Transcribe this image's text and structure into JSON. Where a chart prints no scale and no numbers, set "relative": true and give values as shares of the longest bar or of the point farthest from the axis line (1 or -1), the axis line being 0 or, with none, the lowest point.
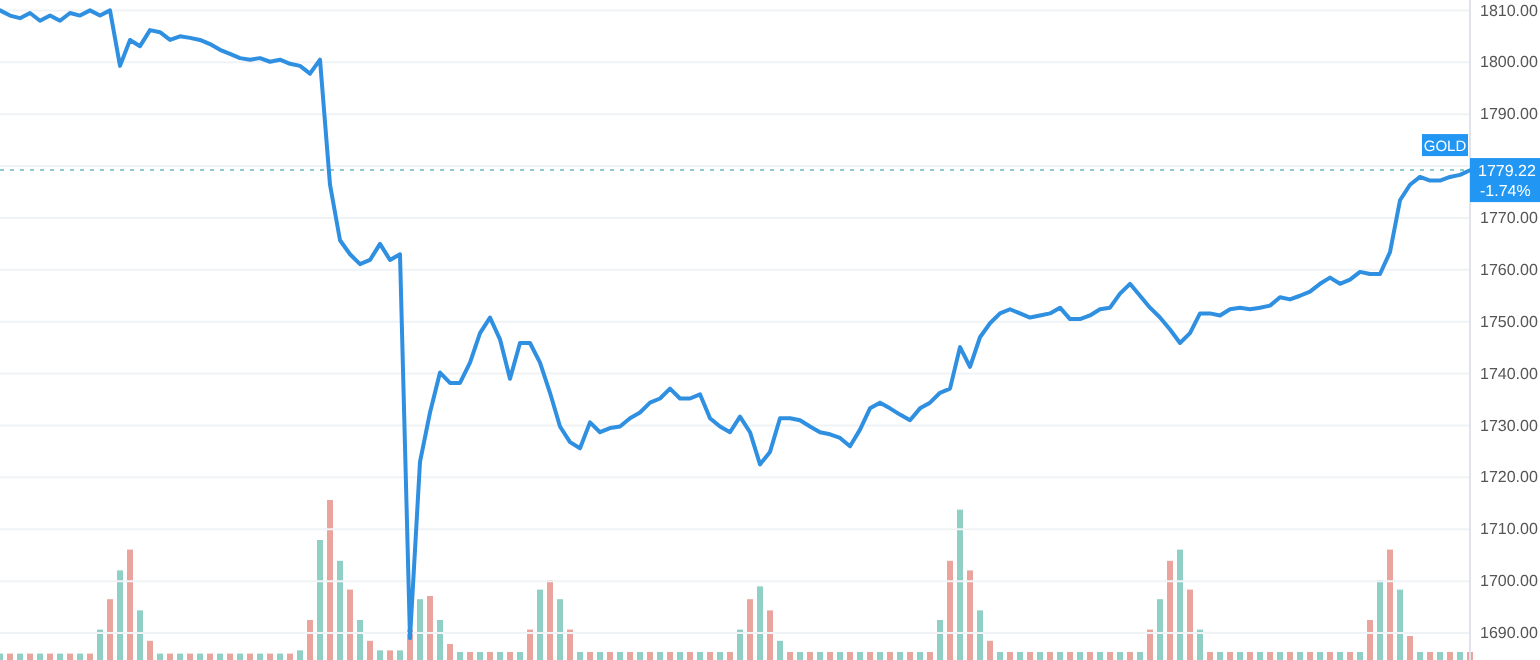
{
  "chart_data": [
    {
      "type": "line",
      "categories": [
        null,
        null,
        null,
        null,
        null,
        null,
        null,
        null,
        null,
        null,
        null,
        null,
        null,
        null,
        null,
        null,
        null,
        null,
        null,
        null,
        null,
        null,
        null,
        null,
        null,
        null,
        null,
        null,
        null,
        null,
        null,
        null,
        null,
        null,
        null,
        null,
        null,
        null,
        null,
        null,
        null,
        null,
        null,
        null,
        null,
        null,
        null,
        null,
        null,
        null,
        null,
        null,
        null,
        null,
        null,
        null,
        null,
        null,
        null,
        null,
        null,
        null,
        null,
        null,
        null,
        null,
        null,
        null,
        null,
        null,
        null,
        null,
        null,
        null,
        null,
        null,
        null,
        null,
        null,
        null,
        null,
        null,
        null,
        null,
        null,
        null,
        null,
        null,
        null,
        null,
        null,
        null,
        null,
        null,
        null,
        null,
        null,
        null,
        null,
        null,
        null,
        null,
        null,
        null,
        null,
        null,
        null,
        null,
        null,
        null,
        null,
        null,
        null,
        null,
        null,
        null,
        null,
        null,
        null,
        null,
        null,
        null,
        null,
        null,
        null,
        null,
        null,
        null,
        null,
        null,
        null,
        null,
        null,
        null,
        null,
        null,
        null,
        null,
        null,
        null,
        null,
        null,
        null,
        null,
        null,
        null,
        null,
        null
      ],
      "series": [
        {
          "color": "#2f8fe0",
          "values": [
            1810,
            1809,
            1808.5,
            1809.5,
            1808,
            1809,
            1808,
            1809.5,
            1809,
            1810,
            1809,
            1810,
            1799.3,
            1804.3,
            1803.1,
            1806.2,
            1805.8,
            1804.3,
            1805,
            1804.7,
            1804.3,
            1803.5,
            1802.4,
            1801.6,
            1800.8,
            1800.5,
            1800.8,
            1800.1,
            1800.5,
            1799.7,
            1799.3,
            1797.8,
            1800.5,
            1776.4,
            1765.7,
            1763,
            1761.1,
            1761.9,
            1765,
            1761.9,
            1763,
            1689,
            1723,
            1732.5,
            1740.2,
            1738.2,
            1738.2,
            1742.1,
            1747.8,
            1750.8,
            1746.6,
            1739,
            1745.9,
            1745.9,
            1742.1,
            1736.3,
            1729.8,
            1726.8,
            1725.6,
            1730.6,
            1728.7,
            1729.5,
            1729.8,
            1731.4,
            1732.5,
            1734.4,
            1735.2,
            1737.1,
            1735.2,
            1735.2,
            1736,
            1731.4,
            1729.8,
            1728.7,
            1731.7,
            1728.7,
            1722.5,
            1724.9,
            1731.4,
            1731.4,
            1731,
            1729.8,
            1728.7,
            1728.3,
            1727.6,
            1726,
            1729.2,
            1733.3,
            1734.4,
            1733.3,
            1732.1,
            1731,
            1733.3,
            1734.4,
            1736.3,
            1737.1,
            1745.1,
            1741.3,
            1747,
            1749.7,
            1751.6,
            1752.4,
            1751.6,
            1750.8,
            1751.2,
            1751.6,
            1752.7,
            1750.5,
            1750.5,
            1751.2,
            1752.4,
            1752.7,
            1755.4,
            1757.3,
            1755,
            1752.7,
            1750.8,
            1748.5,
            1745.9,
            1747.8,
            1751.6,
            1751.6,
            1751.2,
            1752.4,
            1752.7,
            1752.4,
            1752.7,
            1753.1,
            1754.7,
            1754.3,
            1755,
            1755.8,
            1757.3,
            1758.5,
            1757.3,
            1758.1,
            1759.6,
            1759.2,
            1759.2,
            1763.4,
            1773.4,
            1776.4,
            1777.9,
            1777.2,
            1777.2,
            1777.9,
            1778.3,
            1779.2
          ]
        }
      ],
      "ylim": [
        1684.8,
        1812
      ],
      "yticks": [
        {
          "value": 1690,
          "label": "1690.00"
        },
        {
          "value": 1700,
          "label": "1700.00"
        },
        {
          "value": 1710,
          "label": "1710.00"
        },
        {
          "value": 1720,
          "label": "1720.00"
        },
        {
          "value": 1730,
          "label": "1730.00"
        },
        {
          "value": 1740,
          "label": "1740.00"
        },
        {
          "value": 1750,
          "label": "1750.00"
        },
        {
          "value": 1760,
          "label": "1760.00"
        },
        {
          "value": 1770,
          "label": "1770.00"
        },
        {
          "value": 1780,
          "label": null
        },
        {
          "value": 1790,
          "label": "1790.00"
        },
        {
          "value": 1800,
          "label": "1800.00"
        },
        {
          "value": 1810,
          "label": "1810.00"
        }
      ],
      "tick_labels": "y",
      "grid": "y",
      "line_style": "solid",
      "marker": "none",
      "ref_lines": [
        {
          "axis": "y",
          "value": 1779.22,
          "label": "1779.22",
          "color": "#8ec9cc",
          "line_style": "dotted"
        }
      ],
      "annotations": [
        "GOLD",
        "-1.74%"
      ]
    },
    {
      "type": "bar",
      "relative": true,
      "categories": [
        null,
        null,
        null,
        null,
        null,
        null,
        null,
        null,
        null,
        null,
        null,
        null,
        null,
        null,
        null,
        null,
        null,
        null,
        null,
        null,
        null,
        null,
        null,
        null,
        null,
        null,
        null,
        null,
        null,
        null,
        null,
        null,
        null,
        null,
        null,
        null,
        null,
        null,
        null,
        null,
        null,
        null,
        null,
        null,
        null,
        null,
        null,
        null,
        null,
        null,
        null,
        null,
        null,
        null,
        null,
        null,
        null,
        null,
        null,
        null,
        null,
        null,
        null,
        null,
        null,
        null,
        null,
        null,
        null,
        null,
        null,
        null,
        null,
        null,
        null,
        null,
        null,
        null,
        null,
        null,
        null,
        null,
        null,
        null,
        null,
        null,
        null,
        null,
        null,
        null,
        null,
        null,
        null,
        null,
        null,
        null,
        null,
        null,
        null,
        null,
        null,
        null,
        null,
        null,
        null,
        null,
        null,
        null,
        null,
        null,
        null,
        null,
        null,
        null,
        null,
        null,
        null,
        null,
        null,
        null,
        null,
        null,
        null,
        null,
        null,
        null,
        null,
        null,
        null,
        null,
        null,
        null,
        null,
        null,
        null,
        null,
        null,
        null,
        null,
        null,
        null,
        null,
        null,
        null,
        null,
        null,
        null,
        null
      ],
      "values": [
        0.04,
        0.04,
        0.04,
        0.04,
        0.04,
        0.04,
        0.04,
        0.04,
        0.04,
        0.04,
        0.19,
        0.38,
        0.56,
        0.69,
        0.31,
        0.12,
        0.04,
        0.04,
        0.04,
        0.04,
        0.04,
        0.04,
        0.04,
        0.04,
        0.04,
        0.04,
        0.04,
        0.04,
        0.04,
        0.04,
        0.06,
        0.25,
        0.75,
        1,
        0.62,
        0.44,
        0.25,
        0.12,
        0.06,
        0.06,
        0.06,
        0.19,
        0.38,
        0.4,
        0.25,
        0.1,
        0.05,
        0.05,
        0.05,
        0.05,
        0.05,
        0.05,
        0.05,
        0.19,
        0.44,
        0.5,
        0.38,
        0.19,
        0.05,
        0.05,
        0.05,
        0.05,
        0.05,
        0.05,
        0.05,
        0.05,
        0.05,
        0.05,
        0.05,
        0.05,
        0.05,
        0.05,
        0.05,
        0.05,
        0.19,
        0.38,
        0.46,
        0.31,
        0.12,
        0.05,
        0.05,
        0.05,
        0.05,
        0.05,
        0.05,
        0.05,
        0.05,
        0.05,
        0.05,
        0.05,
        0.05,
        0.05,
        0.05,
        0.05,
        0.25,
        0.62,
        0.94,
        0.56,
        0.31,
        0.12,
        0.05,
        0.05,
        0.05,
        0.05,
        0.05,
        0.05,
        0.05,
        0.05,
        0.05,
        0.05,
        0.05,
        0.05,
        0.05,
        0.05,
        0.05,
        0.19,
        0.38,
        0.62,
        0.69,
        0.44,
        0.19,
        0.05,
        0.05,
        0.05,
        0.05,
        0.05,
        0.05,
        0.05,
        0.05,
        0.05,
        0.05,
        0.05,
        0.05,
        0.05,
        0.05,
        0.05,
        0.05,
        0.25,
        0.5,
        0.69,
        0.44,
        0.15,
        0.05,
        0.05,
        0.05,
        0.05,
        0.05,
        0.05
      ],
      "colors": [
        "#8fcfc6",
        "#eba39d",
        "#8fcfc6",
        "#eba39d",
        "#8fcfc6",
        "#eba39d",
        "#8fcfc6",
        "#eba39d",
        "#8fcfc6",
        "#eba39d",
        "#8fcfc6",
        "#eba39d",
        "#8fcfc6",
        "#eba39d",
        "#8fcfc6",
        "#eba39d",
        "#8fcfc6",
        "#eba39d",
        "#8fcfc6",
        "#eba39d",
        "#8fcfc6",
        "#eba39d",
        "#8fcfc6",
        "#eba39d",
        "#8fcfc6",
        "#eba39d",
        "#8fcfc6",
        "#eba39d",
        "#8fcfc6",
        "#eba39d",
        "#8fcfc6",
        "#eba39d",
        "#8fcfc6",
        "#eba39d",
        "#8fcfc6",
        "#eba39d",
        "#8fcfc6",
        "#eba39d",
        "#8fcfc6",
        "#eba39d",
        "#8fcfc6",
        "#eba39d",
        "#8fcfc6",
        "#eba39d",
        "#8fcfc6",
        "#eba39d",
        "#8fcfc6",
        "#eba39d",
        "#8fcfc6",
        "#eba39d",
        "#8fcfc6",
        "#eba39d",
        "#8fcfc6",
        "#eba39d",
        "#8fcfc6",
        "#eba39d",
        "#8fcfc6",
        "#eba39d",
        "#8fcfc6",
        "#eba39d",
        "#8fcfc6",
        "#eba39d",
        "#8fcfc6",
        "#eba39d",
        "#8fcfc6",
        "#eba39d",
        "#8fcfc6",
        "#eba39d",
        "#8fcfc6",
        "#eba39d",
        "#8fcfc6",
        "#eba39d",
        "#8fcfc6",
        "#eba39d",
        "#8fcfc6",
        "#eba39d",
        "#8fcfc6",
        "#eba39d",
        "#8fcfc6",
        "#eba39d",
        "#8fcfc6",
        "#eba39d",
        "#8fcfc6",
        "#eba39d",
        "#8fcfc6",
        "#eba39d",
        "#8fcfc6",
        "#eba39d",
        "#8fcfc6",
        "#eba39d",
        "#8fcfc6",
        "#eba39d",
        "#8fcfc6",
        "#eba39d",
        "#8fcfc6",
        "#eba39d",
        "#8fcfc6",
        "#eba39d",
        "#8fcfc6",
        "#eba39d",
        "#8fcfc6",
        "#eba39d",
        "#8fcfc6",
        "#eba39d",
        "#8fcfc6",
        "#eba39d",
        "#8fcfc6",
        "#eba39d",
        "#8fcfc6",
        "#eba39d",
        "#8fcfc6",
        "#eba39d",
        "#8fcfc6",
        "#eba39d",
        "#8fcfc6",
        "#eba39d",
        "#8fcfc6",
        "#eba39d",
        "#8fcfc6",
        "#eba39d",
        "#8fcfc6",
        "#eba39d",
        "#8fcfc6",
        "#eba39d",
        "#8fcfc6",
        "#eba39d",
        "#8fcfc6",
        "#eba39d",
        "#8fcfc6",
        "#eba39d",
        "#8fcfc6",
        "#eba39d",
        "#8fcfc6",
        "#eba39d",
        "#8fcfc6",
        "#eba39d",
        "#8fcfc6",
        "#eba39d",
        "#8fcfc6",
        "#eba39d",
        "#8fcfc6",
        "#eba39d",
        "#8fcfc6",
        "#eba39d",
        "#8fcfc6",
        "#eba39d",
        "#8fcfc6",
        "#eba39d"
      ]
    }
  ]
}
